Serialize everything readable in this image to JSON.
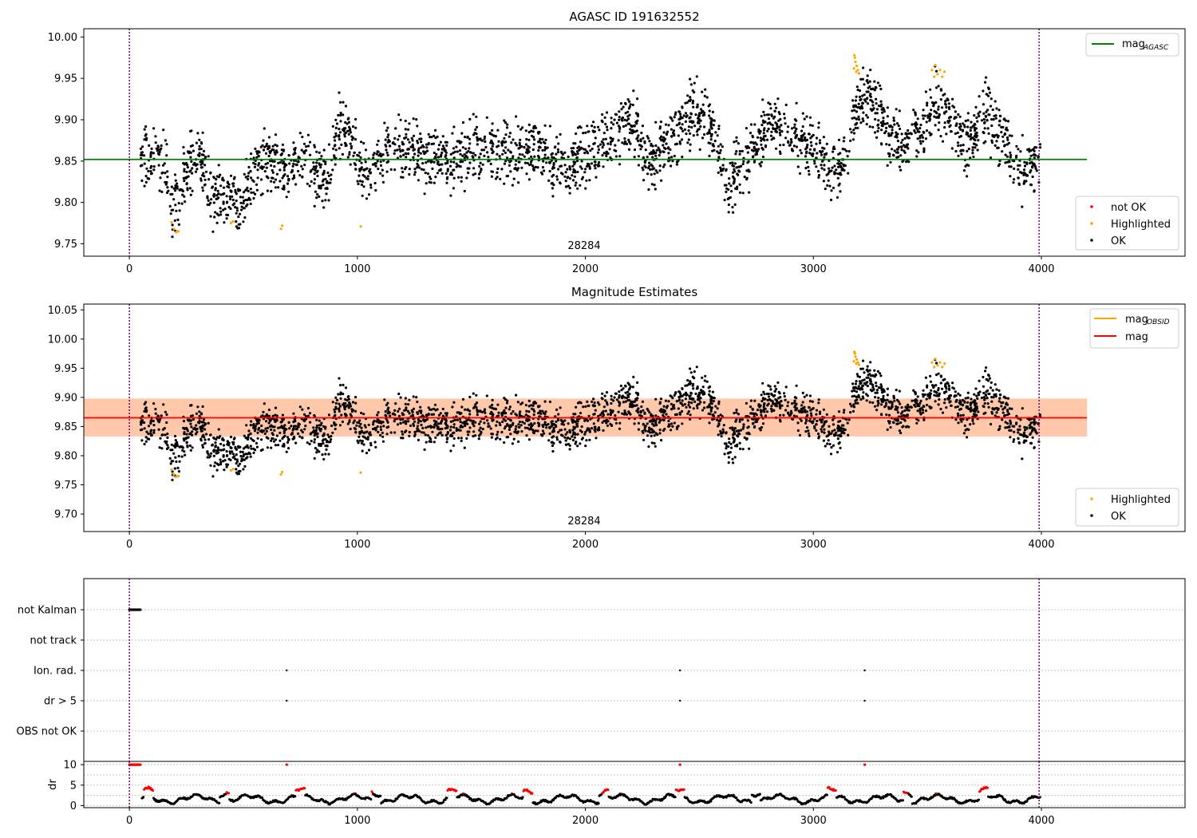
{
  "chart_data": [
    {
      "type": "scatter",
      "title": "AGASC ID 191632552",
      "xlim": [
        -200,
        4630
      ],
      "ylim": [
        9.735,
        10.01
      ],
      "xticks": [
        0,
        1000,
        2000,
        3000,
        4000
      ],
      "yticks": [
        9.75,
        9.8,
        9.85,
        9.9,
        9.95,
        10.0
      ],
      "ytick_labels": [
        "9.75",
        "9.80",
        "9.85",
        "9.90",
        "9.95",
        "10.00"
      ],
      "obsid_label": "28284",
      "vlines": [
        0,
        3990
      ],
      "hline": {
        "name": "mag_AGASC",
        "value": 9.852,
        "x_range": [
          -200,
          4200
        ],
        "color": "#008000"
      },
      "legend_top": [
        {
          "label": "mag",
          "sub": "AGASC",
          "color": "#008000"
        }
      ],
      "legend_bottom": [
        {
          "label": "not OK",
          "color": "#ff0000"
        },
        {
          "label": "Highlighted",
          "color": "#ffa500"
        },
        {
          "label": "OK",
          "color": "#000000"
        }
      ],
      "series": [
        {
          "name": "OK",
          "color": "#000000",
          "x_range": [
            50,
            3995
          ],
          "n": 2800,
          "seed": 7
        },
        {
          "name": "Highlighted",
          "color": "#ffa500",
          "points": [
            [
              185,
              9.776
            ],
            [
              195,
              9.768
            ],
            [
              205,
              9.764
            ],
            [
              215,
              9.765
            ],
            [
              445,
              9.775
            ],
            [
              455,
              9.777
            ],
            [
              665,
              9.768
            ],
            [
              670,
              9.772
            ],
            [
              1015,
              9.771
            ],
            [
              3180,
              9.978
            ],
            [
              3185,
              9.97
            ],
            [
              3190,
              9.965
            ],
            [
              3195,
              9.96
            ],
            [
              3200,
              9.956
            ],
            [
              3178,
              9.962
            ],
            [
              3188,
              9.958
            ],
            [
              3182,
              9.975
            ],
            [
              3520,
              9.96
            ],
            [
              3535,
              9.966
            ],
            [
              3545,
              9.955
            ],
            [
              3555,
              9.96
            ],
            [
              3565,
              9.952
            ],
            [
              3575,
              9.958
            ],
            [
              3530,
              9.952
            ]
          ]
        }
      ]
    },
    {
      "type": "scatter",
      "title": "Magnitude Estimates",
      "xlim": [
        -200,
        4630
      ],
      "ylim": [
        9.67,
        10.06
      ],
      "xticks": [
        0,
        1000,
        2000,
        3000,
        4000
      ],
      "yticks": [
        9.7,
        9.75,
        9.8,
        9.85,
        9.9,
        9.95,
        10.0,
        10.05
      ],
      "ytick_labels": [
        "9.70",
        "9.75",
        "9.80",
        "9.85",
        "9.90",
        "9.95",
        "10.00",
        "10.05"
      ],
      "obsid_label": "28284",
      "vlines": [
        0,
        3990
      ],
      "band": {
        "low": 9.833,
        "high": 9.898,
        "x_range": [
          -200,
          4200
        ]
      },
      "hline": {
        "name": "mag",
        "value": 9.865,
        "x_range": [
          -200,
          4200
        ],
        "color": "#ff0000"
      },
      "legend_top": [
        {
          "label": "mag",
          "sub": "OBSID",
          "color": "#ffa500"
        },
        {
          "label": "mag",
          "sub": "",
          "color": "#ff0000"
        }
      ],
      "legend_bottom": [
        {
          "label": "Highlighted",
          "color": "#ffa500"
        },
        {
          "label": "OK",
          "color": "#000000"
        }
      ]
    },
    {
      "type": "scatter",
      "title": "",
      "xlim": [
        -200,
        4630
      ],
      "xticks": [
        0,
        1000,
        2000,
        3000,
        4000
      ],
      "flag_labels": [
        "not Kalman",
        "not track",
        "Ion. rad.",
        "dr > 5",
        "OBS not OK"
      ],
      "flag_events": {
        "not Kalman": [
          0,
          50
        ],
        "not track": [],
        "Ion. rad.": [
          690,
          2415,
          3225
        ],
        "dr > 5": [
          690,
          2415,
          3225
        ],
        "OBS not OK": []
      },
      "dr_axis": {
        "label": "dr",
        "yticks": [
          0,
          5,
          10
        ],
        "ylim": [
          -0.5,
          10.8
        ],
        "clip": 10
      },
      "vlines": [
        0,
        3990
      ]
    }
  ],
  "xtick_labels": [
    "0",
    "1000",
    "2000",
    "3000",
    "4000"
  ]
}
